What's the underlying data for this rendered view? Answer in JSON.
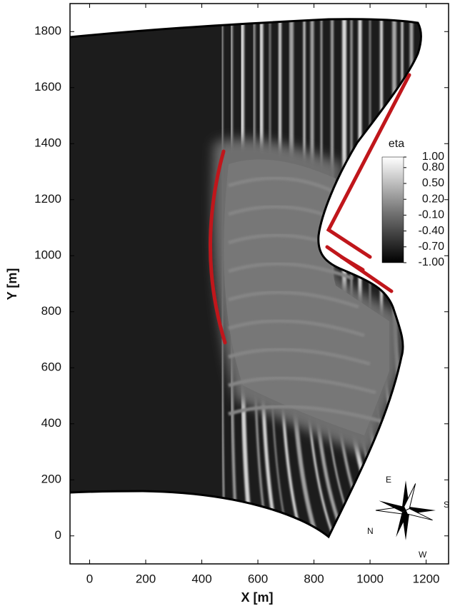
{
  "chart_data": {
    "type": "contour",
    "x_label": "X [m]",
    "y_label": "Y [m]",
    "xlim": [
      -70,
      1280
    ],
    "xticks": [
      0,
      200,
      400,
      600,
      800,
      1000,
      1200
    ],
    "ylim": [
      -100,
      1900
    ],
    "yticks": [
      0,
      200,
      400,
      600,
      800,
      1000,
      1200,
      1400,
      1600,
      1800
    ],
    "colorbar": {
      "title": "eta",
      "lim": [
        -1,
        1
      ],
      "ticks": [
        {
          "value": 1,
          "label": "1.00"
        },
        {
          "value": 0.8,
          "label": "0.80"
        },
        {
          "value": 0.5,
          "label": "0.50"
        },
        {
          "value": 0.2,
          "label": "0.20"
        },
        {
          "value": -0.1,
          "label": "-0.10"
        },
        {
          "value": -0.4,
          "label": "-0.40"
        },
        {
          "value": -0.7,
          "label": "-0.70"
        },
        {
          "value": -1,
          "label": "-1.00"
        }
      ]
    }
  },
  "compass": {
    "east": "E",
    "south": "S",
    "north": "N",
    "west": "W"
  }
}
